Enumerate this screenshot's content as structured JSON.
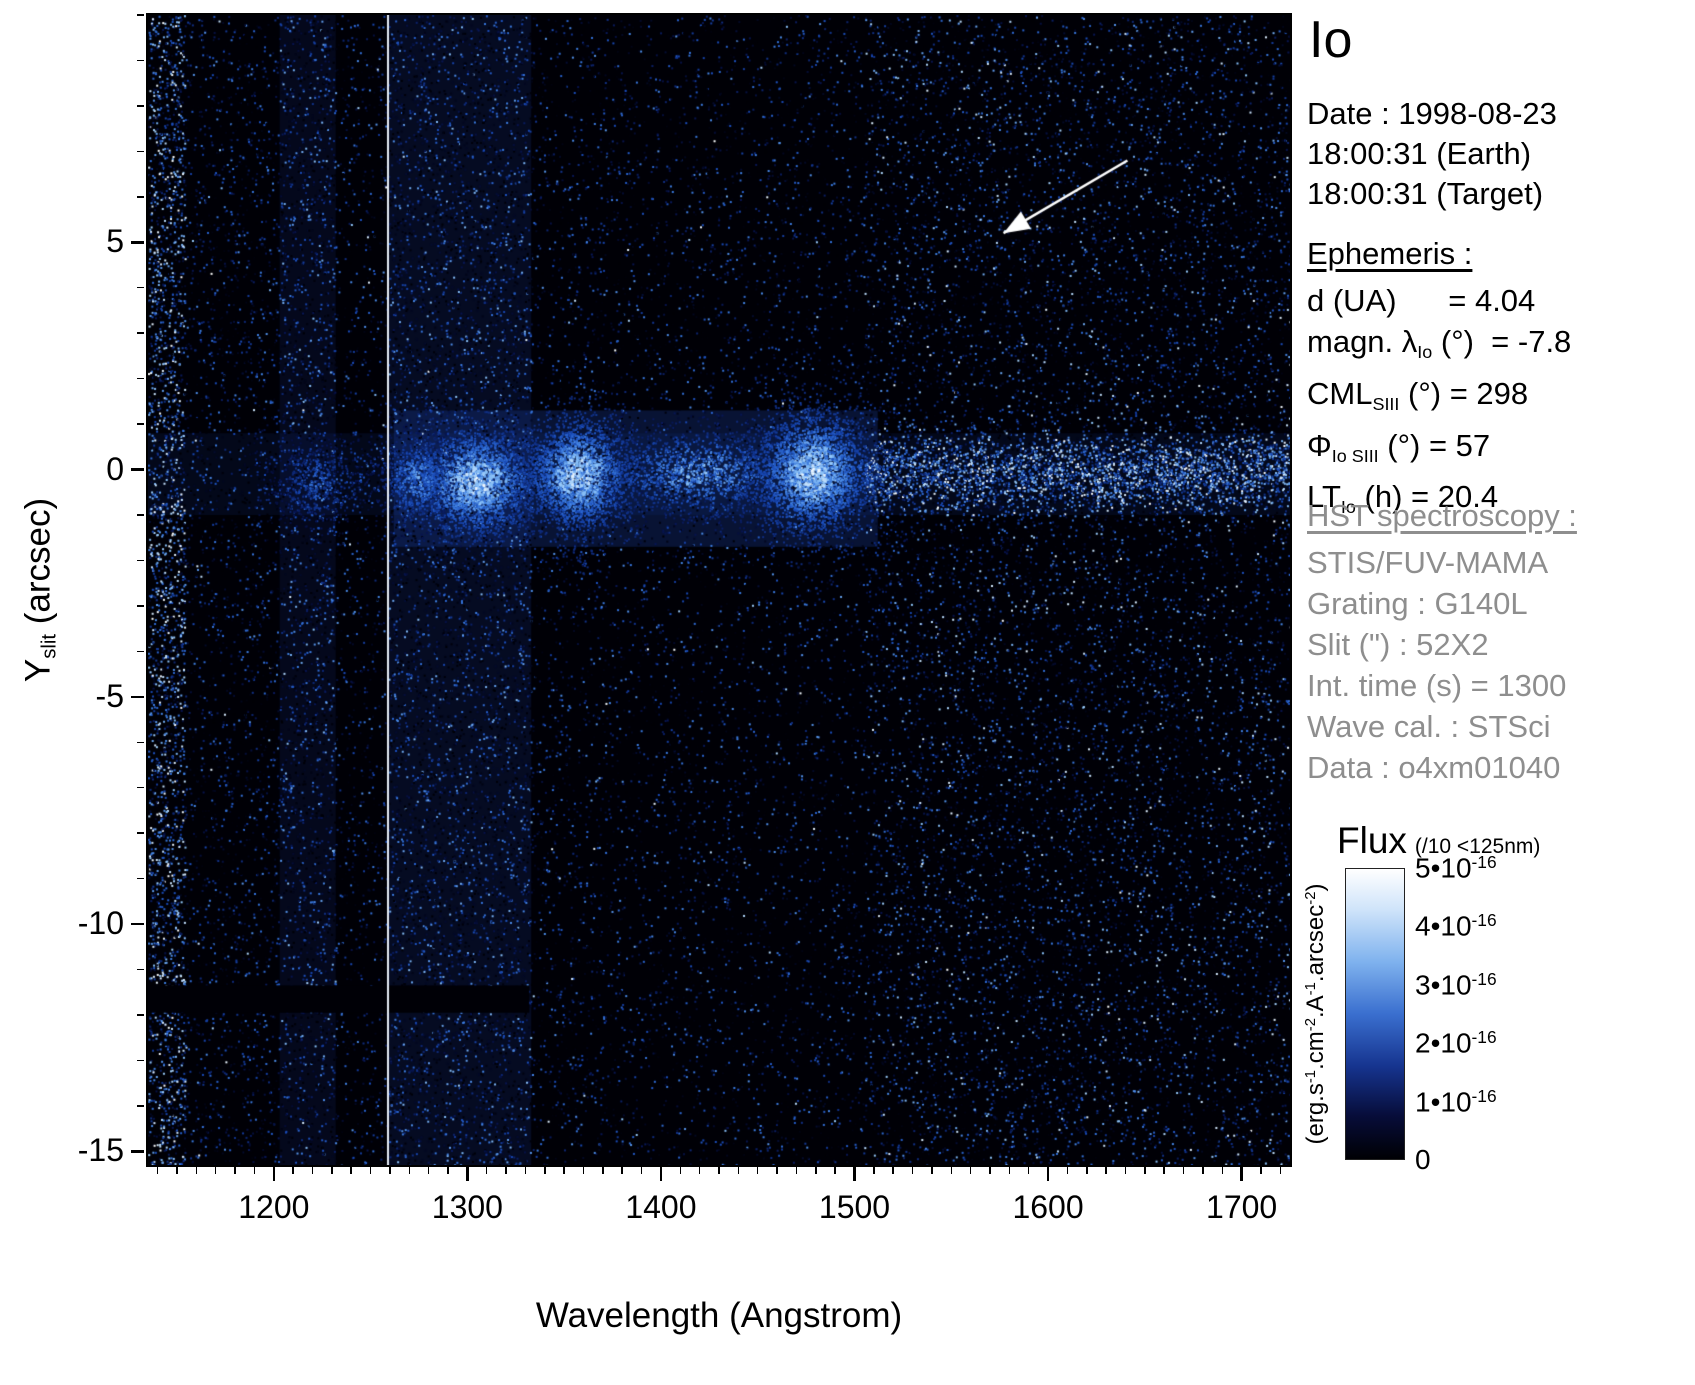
{
  "title": "Io",
  "observation": {
    "date": "Date : 1998-08-23",
    "time_earth": "18:00:31 (Earth)",
    "time_target": "18:00:31 (Target)"
  },
  "ephemeris": {
    "heading": "Ephemeris :",
    "lines": [
      {
        "segments": [
          {
            "t": "d (UA)      = 4.04"
          }
        ]
      },
      {
        "segments": [
          {
            "t": "magn. λ"
          },
          {
            "t": "Io",
            "s": "sub"
          },
          {
            "t": " (°)  = -7.8"
          }
        ]
      },
      {
        "segments": [
          {
            "t": "CML"
          },
          {
            "t": "SIII",
            "s": "sub"
          },
          {
            "t": " (°) = 298"
          }
        ]
      },
      {
        "segments": [
          {
            "t": "Φ"
          },
          {
            "t": "Io SIII",
            "s": "sub"
          },
          {
            "t": " (°) = 57"
          }
        ]
      },
      {
        "segments": [
          {
            "t": "LT"
          },
          {
            "t": "Io",
            "s": "sub"
          },
          {
            "t": " (h) = 20.4"
          }
        ]
      }
    ]
  },
  "hst": {
    "heading": "HST spectroscopy :",
    "lines": [
      "STIS/FUV-MAMA",
      "Grating : G140L",
      "Slit (\") : 52X2",
      "Int. time (s) = 1300",
      "Wave cal. : STSci",
      "Data : o4xm01040"
    ]
  },
  "colorbar": {
    "title": "Flux",
    "note": "(/10 <125nm)",
    "unit_segments": [
      {
        "t": "(erg.s"
      },
      {
        "t": "-1",
        "s": "sup"
      },
      {
        "t": ".cm"
      },
      {
        "t": "-2",
        "s": "sup"
      },
      {
        "t": ".A"
      },
      {
        "t": "-1",
        "s": "sup"
      },
      {
        "t": ".arcsec"
      },
      {
        "t": "-2",
        "s": "sup"
      },
      {
        "t": ")"
      }
    ],
    "tick_labels": [
      {
        "segments": [
          {
            "t": "5•10"
          },
          {
            "t": "-16",
            "s": "sup"
          }
        ]
      },
      {
        "segments": [
          {
            "t": "4•10"
          },
          {
            "t": "-16",
            "s": "sup"
          }
        ]
      },
      {
        "segments": [
          {
            "t": "3•10"
          },
          {
            "t": "-16",
            "s": "sup"
          }
        ]
      },
      {
        "segments": [
          {
            "t": "2•10"
          },
          {
            "t": "-16",
            "s": "sup"
          }
        ]
      },
      {
        "segments": [
          {
            "t": "1•10"
          },
          {
            "t": "-16",
            "s": "sup"
          }
        ]
      },
      {
        "segments": [
          {
            "t": "0"
          }
        ]
      }
    ],
    "gradient": [
      {
        "c": "#ffffff",
        "p": 0
      },
      {
        "c": "#cfe4fa",
        "p": 14
      },
      {
        "c": "#7fb2ee",
        "p": 32
      },
      {
        "c": "#3a6fcf",
        "p": 50
      },
      {
        "c": "#16348f",
        "p": 68
      },
      {
        "c": "#070d3a",
        "p": 85
      },
      {
        "c": "#000004",
        "p": 100
      }
    ]
  },
  "chart_data": {
    "type": "heatmap",
    "title": "Io",
    "xlabel": "Wavelength (Angstrom)",
    "ylabel": "Y slit (arcsec)",
    "ylabel_segments": [
      {
        "t": "Y"
      },
      {
        "t": "slit",
        "s": "sub"
      },
      {
        "t": " (arcsec)"
      }
    ],
    "xlim": [
      1135,
      1725
    ],
    "ylim": [
      -15.3,
      10
    ],
    "x_ticks": [
      1200,
      1300,
      1400,
      1500,
      1600,
      1700
    ],
    "y_ticks": [
      5,
      0,
      -5,
      -10,
      -15
    ],
    "x_minor_step": 10,
    "y_minor_step": 1,
    "flux_scale": {
      "min": 0,
      "max": 5e-16,
      "note": "/10 <125nm",
      "units": "erg.s-1.cm-2.A-1.arcsec-2"
    },
    "emission_band_y": 0,
    "emission_features_angstrom": [
      1222,
      1273,
      1304,
      1357,
      1420,
      1478
    ],
    "render": {
      "seed": 1337,
      "bg": "#000006",
      "haze": [
        {
          "x0": 1203,
          "x1": 1232,
          "y0": -15.3,
          "y1": 10,
          "c": "rgba(16,32,95,0.25)"
        },
        {
          "x0": 1259,
          "x1": 1333,
          "y0": -15.3,
          "y1": 10,
          "c": "rgba(24,48,135,0.22)"
        },
        {
          "x0": 1262,
          "x1": 1512,
          "y0": -1.7,
          "y1": 1.3,
          "c": "rgba(28,64,160,0.30)"
        },
        {
          "x0": 1135,
          "x1": 1725,
          "y0": -1.0,
          "y1": 0.8,
          "c": "rgba(22,52,140,0.15)"
        }
      ],
      "speckle": [
        {
          "x0": 1135,
          "x1": 1725,
          "y0": -15.3,
          "y1": 10,
          "count": 24000,
          "bias": 2.3,
          "vmax": 0.68,
          "size": 2
        },
        {
          "x0": 1135,
          "x1": 1725,
          "y0": -15.3,
          "y1": 10,
          "count": 700,
          "bias": 1.0,
          "vmax": 1.0,
          "size": 2
        },
        {
          "x0": 1135,
          "x1": 1154,
          "y0": -15.3,
          "y1": 10,
          "count": 2300,
          "bias": 1.0,
          "vmax": 1.0,
          "size": 2
        },
        {
          "x0": 1154,
          "x1": 1203,
          "y0": -15.3,
          "y1": 10,
          "count": 800,
          "bias": 2.4,
          "vmax": 0.6,
          "size": 2
        },
        {
          "x0": 1203,
          "x1": 1232,
          "y0": -15.3,
          "y1": 10,
          "count": 1300,
          "bias": 1.9,
          "vmax": 0.8,
          "size": 2
        },
        {
          "x0": 1259,
          "x1": 1333,
          "y0": -15.3,
          "y1": 10,
          "count": 3800,
          "bias": 2.1,
          "vmax": 0.8,
          "size": 2
        },
        {
          "x0": 1505,
          "x1": 1725,
          "y0": -15.3,
          "y1": 10,
          "count": 6200,
          "bias": 2.3,
          "vmax": 0.95,
          "size": 2
        }
      ],
      "bands": [
        {
          "x0": 1505,
          "x1": 1725,
          "y": -0.05,
          "sy": 0.42,
          "count": 3200,
          "vmin": 0.25,
          "vmax": 1.0
        },
        {
          "x0": 1190,
          "x1": 1259,
          "y": -0.2,
          "sy": 0.45,
          "count": 320,
          "vmin": 0.1,
          "vmax": 0.55
        }
      ],
      "blobs": [
        {
          "x": 1304,
          "sx": 17,
          "y": -0.25,
          "sy": 0.6,
          "count": 2600,
          "vmin": 0.3,
          "vmax": 1.0
        },
        {
          "x": 1273,
          "sx": 10,
          "y": -0.2,
          "sy": 0.5,
          "count": 700,
          "vmin": 0.2,
          "vmax": 0.8
        },
        {
          "x": 1357,
          "sx": 14,
          "y": -0.1,
          "sy": 0.65,
          "count": 2600,
          "vmin": 0.3,
          "vmax": 1.0
        },
        {
          "x": 1420,
          "sx": 28,
          "y": -0.05,
          "sy": 0.55,
          "count": 1500,
          "vmin": 0.2,
          "vmax": 0.85
        },
        {
          "x": 1478,
          "sx": 16,
          "y": -0.05,
          "sy": 0.7,
          "count": 3000,
          "vmin": 0.3,
          "vmax": 1.0
        },
        {
          "x": 1222,
          "sx": 11,
          "y": -0.3,
          "sy": 0.5,
          "count": 420,
          "vmin": 0.15,
          "vmax": 0.65
        }
      ],
      "dark_rects": [
        {
          "x0": 1135,
          "x1": 1332,
          "y0": -11.95,
          "y1": -11.35
        }
      ],
      "vline": {
        "x": 1259,
        "color": "#e6edf6"
      },
      "arrow": {
        "x0": 1641,
        "y0": 6.8,
        "x1": 1577,
        "y1": 5.2,
        "color": "#ffffff"
      }
    }
  }
}
